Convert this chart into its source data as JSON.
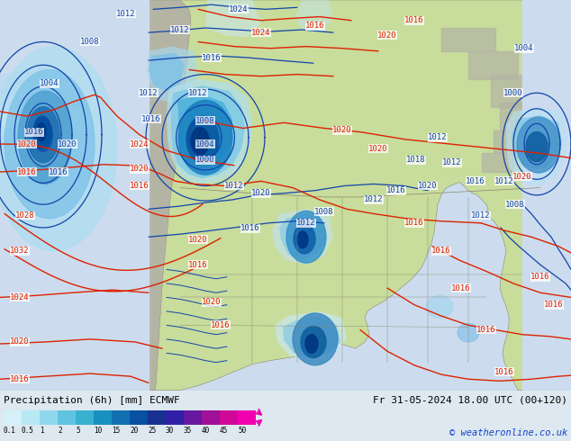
{
  "title_left": "Precipitation (6h) [mm] ECMWF",
  "title_right": "Fr 31-05-2024 18.00 UTC (00+120)",
  "copyright": "© weatheronline.co.uk",
  "colorbar_levels": [
    0.1,
    0.5,
    1,
    2,
    5,
    10,
    15,
    20,
    25,
    30,
    35,
    40,
    45,
    50
  ],
  "colorbar_colors": [
    "#d4f0f8",
    "#b8e8f4",
    "#90d8ee",
    "#60c4e0",
    "#38b0d0",
    "#1890c0",
    "#1070b0",
    "#0850a0",
    "#183090",
    "#3020a8",
    "#6818a0",
    "#a01098",
    "#d00898",
    "#f000b0"
  ],
  "ocean_color": "#ccdcee",
  "land_color_green": "#c8dc9c",
  "land_color_gray": "#b4b4a4",
  "bg_color": "#dde8f0",
  "bottom_bg": "#e8e8e0",
  "fig_width": 6.34,
  "fig_height": 4.9,
  "dpi": 100,
  "red_contour_color": "#dd2200",
  "blue_contour_color": "#1144aa"
}
